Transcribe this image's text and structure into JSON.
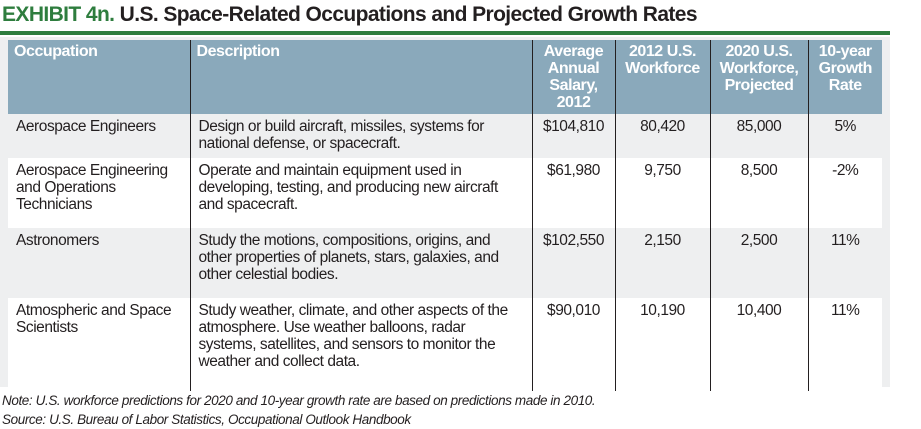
{
  "title": {
    "exhibit": "EXHIBIT 4n.",
    "text": "U.S. Space-Related Occupations and Projected Growth Rates"
  },
  "colors": {
    "accent_green": "#2e7d3e",
    "header_blue": "#8aa9bb",
    "row_gray": "#eeeff0"
  },
  "table": {
    "headers": [
      "Occupation",
      "Description",
      "Average Annual Salary, 2012",
      "2012 U.S. Workforce",
      "2020 U.S. Workforce, Projected",
      "10-year Growth Rate"
    ],
    "rows": [
      [
        "Aerospace Engineers",
        "Design or build aircraft, missiles, systems for national defense, or spacecraft.",
        "$104,810",
        "80,420",
        "85,000",
        "5%"
      ],
      [
        "Aerospace Engineering and Operations Technicians",
        "Operate and maintain equipment used in developing, testing, and producing new aircraft and spacecraft.",
        "$61,980",
        "9,750",
        "8,500",
        "-2%"
      ],
      [
        "Astronomers",
        "Study the motions, compositions, origins, and other properties of planets, stars, galaxies, and other celestial bodies.",
        "$102,550",
        "2,150",
        "2,500",
        "11%"
      ],
      [
        "Atmospheric and Space Scientists",
        "Study weather, climate, and other aspects of the atmosphere. Use weather balloons, radar systems, satellites, and sensors to monitor the weather and collect data.",
        "$90,010",
        "10,190",
        "10,400",
        "11%"
      ]
    ]
  },
  "notes": {
    "note": "Note: U.S. workforce predictions for 2020 and 10-year growth rate are based on predictions made in 2010.",
    "source": "Source: U.S. Bureau of Labor Statistics, Occupational Outlook Handbook"
  }
}
